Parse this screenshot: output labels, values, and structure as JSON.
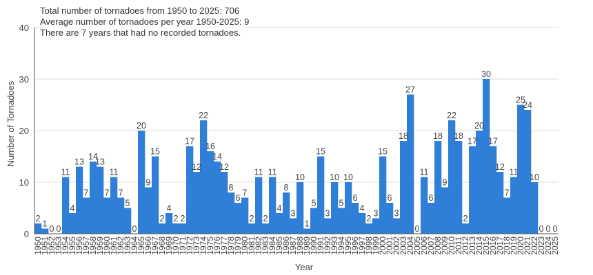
{
  "notes": {
    "total": "Total number of tornadoes from 1950 to 2025: 706",
    "average": "Average number of tornadoes per year 1950-2025: 9",
    "zero_years": "There are 7 years that had no recorded tornadoes."
  },
  "chart_data": {
    "type": "bar",
    "title": "",
    "xlabel": "Year",
    "ylabel": "Number of Tornadoes",
    "ylim": [
      0,
      40
    ],
    "yticks": [
      0,
      10,
      20,
      30,
      40
    ],
    "grid": true,
    "bar_color": "#2f7ed8",
    "categories": [
      "1950",
      "1951",
      "1952",
      "1953",
      "1954",
      "1955",
      "1956",
      "1957",
      "1958",
      "1959",
      "1960",
      "1961",
      "1962",
      "1963",
      "1964",
      "1965",
      "1966",
      "1967",
      "1968",
      "1969",
      "1970",
      "1971",
      "1972",
      "1973",
      "1974",
      "1975",
      "1976",
      "1977",
      "1978",
      "1979",
      "1980",
      "1981",
      "1982",
      "1983",
      "1984",
      "1985",
      "1986",
      "1987",
      "1988",
      "1989",
      "1990",
      "1991",
      "1992",
      "1993",
      "1994",
      "1995",
      "1996",
      "1997",
      "1998",
      "1999",
      "2000",
      "2001",
      "2002",
      "2003",
      "2004",
      "2005",
      "2006",
      "2007",
      "2008",
      "2009",
      "2010",
      "2011",
      "2012",
      "2013",
      "2014",
      "2015",
      "2016",
      "2017",
      "2018",
      "2019",
      "2020",
      "2021",
      "2022",
      "2023",
      "2024",
      "2025"
    ],
    "values": [
      2,
      1,
      0,
      0,
      11,
      4,
      13,
      7,
      14,
      13,
      7,
      11,
      7,
      5,
      0,
      20,
      9,
      15,
      2,
      4,
      2,
      2,
      17,
      12,
      22,
      16,
      14,
      12,
      8,
      6,
      7,
      2,
      11,
      2,
      11,
      4,
      8,
      3,
      10,
      1,
      5,
      15,
      3,
      10,
      5,
      10,
      6,
      4,
      2,
      3,
      15,
      6,
      3,
      18,
      27,
      0,
      11,
      6,
      18,
      9,
      22,
      18,
      2,
      17,
      20,
      30,
      17,
      12,
      7,
      11,
      25,
      24,
      10,
      0,
      0,
      0
    ]
  }
}
